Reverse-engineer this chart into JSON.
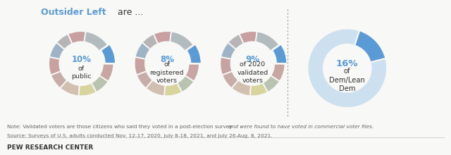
{
  "title_blue": "Outsider Left",
  "title_gray": " are ...",
  "background": "#f8f8f6",
  "blue": "#5b9bd5",
  "dark_text": "#333333",
  "note_text": "#666666",
  "charts": [
    {
      "pct": "10%",
      "label": "of\npublic",
      "type": "typology"
    },
    {
      "pct": "8%",
      "label": "of\nregistered\nvoters",
      "type": "typology"
    },
    {
      "pct": "9%",
      "label": "of 2020\nvalidated\nvoters",
      "type": "typology"
    },
    {
      "pct": "16%",
      "label": "of\nDem/Lean\nDem",
      "type": "dem"
    }
  ],
  "typology_sizes": [
    9,
    7,
    8,
    9,
    8,
    10,
    9,
    8,
    9,
    10,
    13
  ],
  "typology_colors": [
    "#c8a0a2",
    "#b6b4b6",
    "#9eb4c6",
    "#c8a2a0",
    "#c8aca8",
    "#d2bfb0",
    "#d8d49e",
    "#b8c4b0",
    "#c8a6a2",
    "#5b9bd5",
    "#b2bcbe"
  ],
  "typology_explode_idx": 9,
  "dem_sizes": [
    84,
    16
  ],
  "dem_colors": [
    "#cde0f0",
    "#5b9bd5"
  ],
  "note1a": "Note: Validated voters are those citizens who said they voted in a post-election survey ",
  "note1b": "and were found to have voted in commercial voter files.",
  "note2": "Source: Surveys of U.S. adults conducted Nov. 12-17, 2020, July 8-18, 2021, and July 26-Aug. 8, 2021.",
  "footer": "PEW RESEARCH CENTER"
}
